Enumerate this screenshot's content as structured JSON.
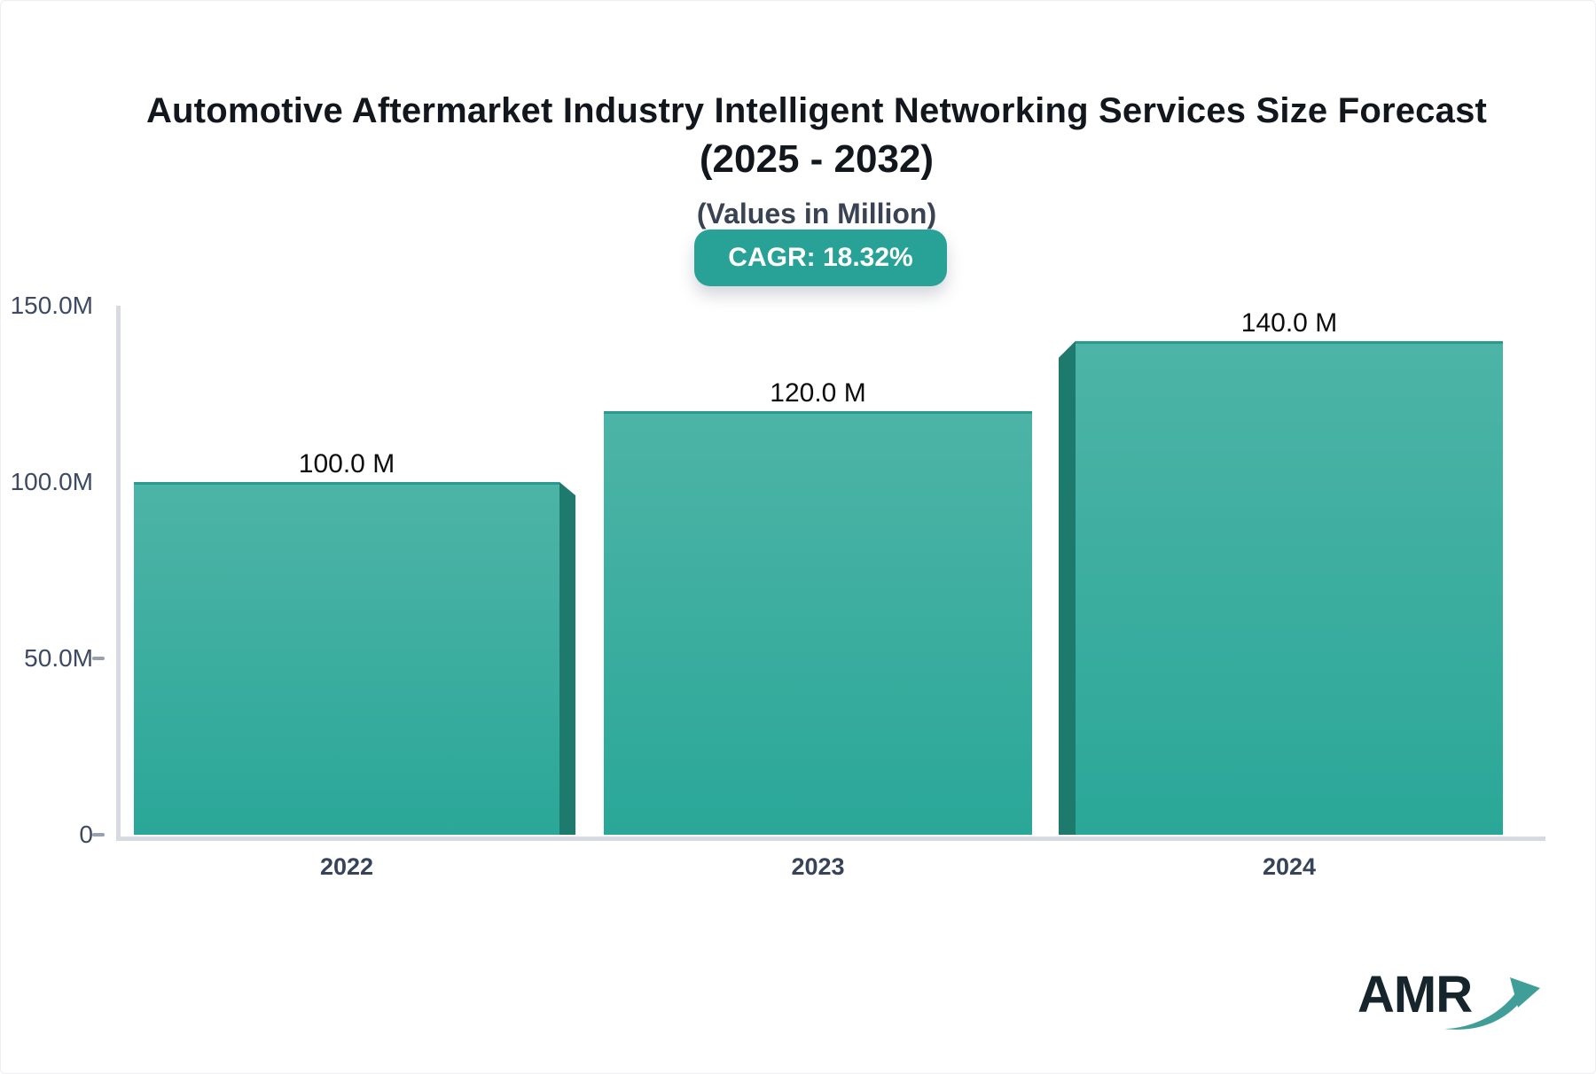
{
  "header": {
    "title_line1": "Automotive Aftermarket Industry Intelligent Networking Services Size Forecast",
    "title_line2": "(2025 - 2032)",
    "subtitle": "(Values in Million)",
    "cagr_badge": "CAGR: 18.32%"
  },
  "chart_data": {
    "type": "bar",
    "title": "Automotive Aftermarket Industry Intelligent Networking Services Size Forecast (2025 - 2032)",
    "values_unit": "Million",
    "cagr_percent": 18.32,
    "categories": [
      "2022",
      "2023",
      "2024"
    ],
    "values": [
      100.0,
      120.0,
      140.0
    ],
    "value_labels": [
      "100.0 M",
      "120.0 M",
      "140.0 M"
    ],
    "ylim": [
      0,
      150
    ],
    "yticks": [
      {
        "value": 0,
        "label": "0",
        "dash": true
      },
      {
        "value": 50,
        "label": "50.0M",
        "dash": true
      },
      {
        "value": 100,
        "label": "100.0M",
        "dash": false
      },
      {
        "value": 150,
        "label": "150.0M",
        "dash": false
      }
    ],
    "legend": null,
    "grid": false
  },
  "colors": {
    "bar_top": "#4db4a7",
    "bar_bottom": "#2aa798",
    "bar_top_border": "#2b9a8e",
    "bar_side_dark": "#1f7a6e",
    "badge_bg": "#28a296",
    "badge_text": "#ffffff",
    "axis_line": "#d8dae1",
    "axis_text": "#3e4a63",
    "title_text": "#12161d",
    "logo_dark": "#16242c",
    "logo_teal": "#3f9e97"
  },
  "footer": {
    "logo_text": "AMR"
  }
}
